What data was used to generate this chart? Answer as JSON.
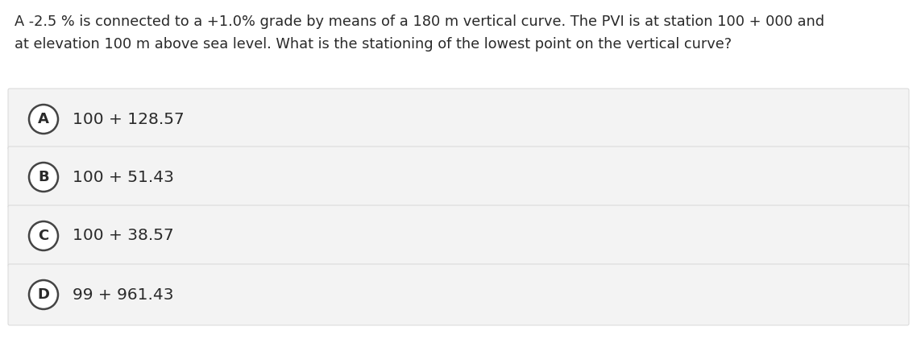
{
  "question_line1": "A -2.5 % is connected to a +1.0% grade by means of a 180 m vertical curve. The PVI is at station 100 + 000 and",
  "question_line2": "at elevation 100 m above sea level. What is the stationing of the lowest point on the vertical curve?",
  "options": [
    {
      "label": "A",
      "text": "100 + 128.57"
    },
    {
      "label": "B",
      "text": "100 + 51.43"
    },
    {
      "label": "C",
      "text": "100 + 38.57"
    },
    {
      "label": "D",
      "text": "99 + 961.43"
    }
  ],
  "bg_color": "#ffffff",
  "option_bg_color": "#f3f3f3",
  "option_border_color": "#d8d8d8",
  "text_color": "#2a2a2a",
  "circle_bg_color": "#ffffff",
  "circle_border_color": "#444444",
  "question_fontsize": 12.8,
  "option_fontsize": 14.5,
  "label_fontsize": 13.0,
  "fig_width": 11.38,
  "fig_height": 4.36,
  "dpi": 100
}
